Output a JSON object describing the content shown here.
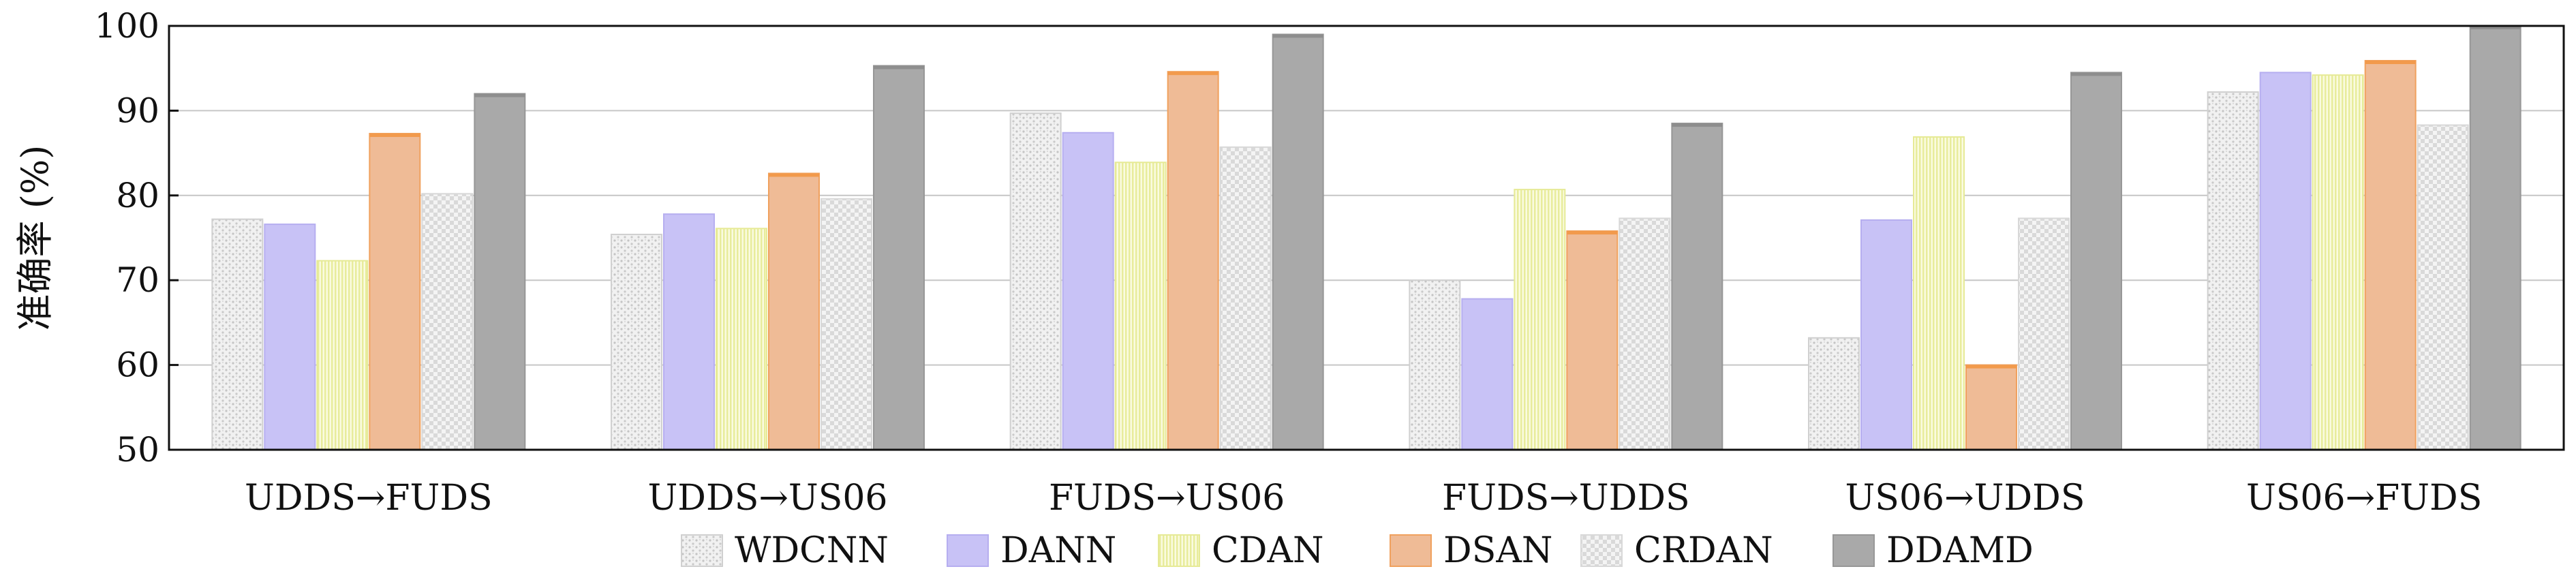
{
  "chart_data": {
    "type": "bar",
    "title": "",
    "xlabel": "",
    "ylabel": "准确率 (%)",
    "ylim": [
      50,
      100
    ],
    "yticks": [
      "50",
      "60",
      "70",
      "80",
      "90",
      "100"
    ],
    "grid": "horizontal",
    "legend_position": "bottom",
    "categories": [
      "UDDS→FUDS",
      "UDDS→US06",
      "FUDS→US06",
      "FUDS→UDDS",
      "US06→UDDS",
      "US06→FUDS"
    ],
    "series": [
      {
        "name": "WDCNN",
        "values": [
          77.2,
          75.4,
          89.7,
          70.0,
          63.2,
          92.2
        ]
      },
      {
        "name": "DANN",
        "values": [
          76.6,
          77.8,
          87.4,
          67.8,
          77.1,
          94.5
        ]
      },
      {
        "name": "CDAN",
        "values": [
          72.3,
          76.1,
          83.9,
          80.7,
          86.9,
          94.2
        ]
      },
      {
        "name": "DSAN",
        "values": [
          87.3,
          82.6,
          94.6,
          75.8,
          60.0,
          95.9
        ]
      },
      {
        "name": "CRDAN",
        "values": [
          80.2,
          79.6,
          85.7,
          77.3,
          77.3,
          88.3
        ]
      },
      {
        "name": "DDAMD",
        "values": [
          92.0,
          95.3,
          99.0,
          88.5,
          94.5,
          100.0
        ]
      }
    ]
  },
  "colors": {
    "WDCNN": "#e9e9e9",
    "DANN": "#c8c2f6",
    "CDAN": "#f7f8c8",
    "DSAN": "#efbb96",
    "CRDAN": "#eeeeee",
    "DDAMD": "#a9a9a9"
  }
}
